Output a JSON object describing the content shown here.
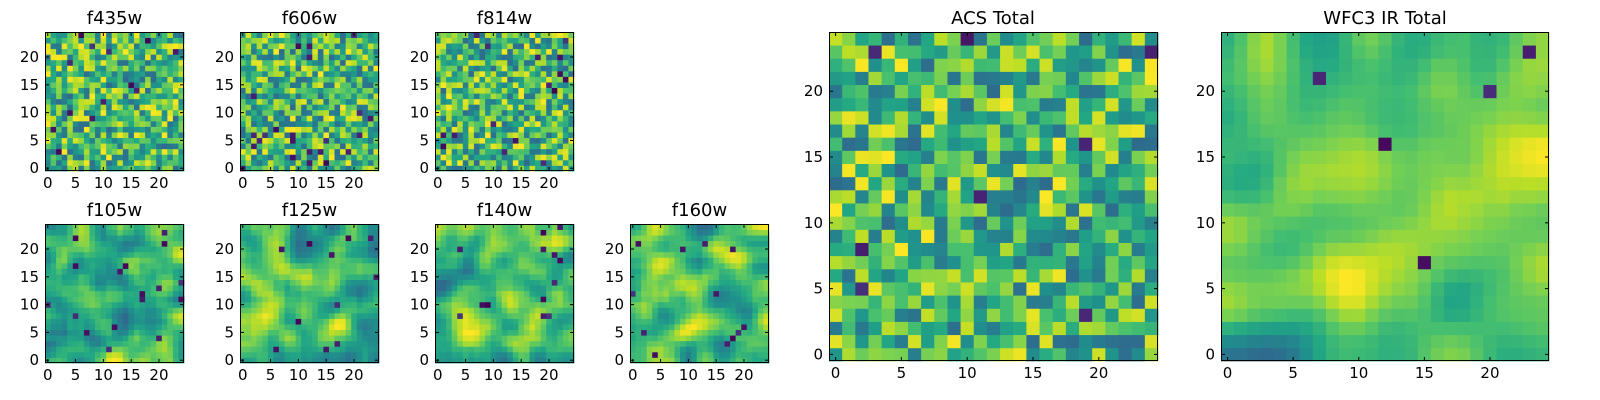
{
  "chart_data": [
    {
      "type": "heatmap",
      "title": "f435w",
      "grid_size": 25,
      "x_ticks": [
        "0",
        "5",
        "10",
        "15",
        "20"
      ],
      "y_ticks": [
        "0",
        "5",
        "10",
        "15",
        "20"
      ],
      "xlim": [
        -0.5,
        24.5
      ],
      "ylim": [
        -0.5,
        24.5
      ],
      "colormap": "viridis",
      "seed": 11,
      "smoothness": 0,
      "dark_fraction": 0.03
    },
    {
      "type": "heatmap",
      "title": "f606w",
      "grid_size": 25,
      "x_ticks": [
        "0",
        "5",
        "10",
        "15",
        "20"
      ],
      "y_ticks": [
        "0",
        "5",
        "10",
        "15",
        "20"
      ],
      "xlim": [
        -0.5,
        24.5
      ],
      "ylim": [
        -0.5,
        24.5
      ],
      "colormap": "viridis",
      "seed": 23,
      "smoothness": 0,
      "dark_fraction": 0.03
    },
    {
      "type": "heatmap",
      "title": "f814w",
      "grid_size": 25,
      "x_ticks": [
        "0",
        "5",
        "10",
        "15",
        "20"
      ],
      "y_ticks": [
        "0",
        "5",
        "10",
        "15",
        "20"
      ],
      "xlim": [
        -0.5,
        24.5
      ],
      "ylim": [
        -0.5,
        24.5
      ],
      "colormap": "viridis",
      "seed": 37,
      "smoothness": 0,
      "dark_fraction": 0.03
    },
    {
      "type": "heatmap",
      "title": "f105w",
      "grid_size": 25,
      "x_ticks": [
        "0",
        "5",
        "10",
        "15",
        "20"
      ],
      "y_ticks": [
        "0",
        "5",
        "10",
        "15",
        "20"
      ],
      "xlim": [
        -0.5,
        24.5
      ],
      "ylim": [
        -0.5,
        24.5
      ],
      "colormap": "viridis",
      "seed": 41,
      "smoothness": 2,
      "dark_fraction": 0.02
    },
    {
      "type": "heatmap",
      "title": "f125w",
      "grid_size": 25,
      "x_ticks": [
        "0",
        "5",
        "10",
        "15",
        "20"
      ],
      "y_ticks": [
        "0",
        "5",
        "10",
        "15",
        "20"
      ],
      "xlim": [
        -0.5,
        24.5
      ],
      "ylim": [
        -0.5,
        24.5
      ],
      "colormap": "viridis",
      "seed": 53,
      "smoothness": 2,
      "dark_fraction": 0.02
    },
    {
      "type": "heatmap",
      "title": "f140w",
      "grid_size": 25,
      "x_ticks": [
        "0",
        "5",
        "10",
        "15",
        "20"
      ],
      "y_ticks": [
        "0",
        "5",
        "10",
        "15",
        "20"
      ],
      "xlim": [
        -0.5,
        24.5
      ],
      "ylim": [
        -0.5,
        24.5
      ],
      "colormap": "viridis",
      "seed": 67,
      "smoothness": 2,
      "dark_fraction": 0.02
    },
    {
      "type": "heatmap",
      "title": "f160w",
      "grid_size": 25,
      "x_ticks": [
        "0",
        "5",
        "10",
        "15",
        "20"
      ],
      "y_ticks": [
        "0",
        "5",
        "10",
        "15",
        "20"
      ],
      "xlim": [
        -0.5,
        24.5
      ],
      "ylim": [
        -0.5,
        24.5
      ],
      "colormap": "viridis",
      "seed": 71,
      "smoothness": 2,
      "dark_fraction": 0.02
    },
    {
      "type": "heatmap",
      "title": "ACS Total",
      "grid_size": 25,
      "x_ticks": [
        "0",
        "5",
        "10",
        "15",
        "20"
      ],
      "y_ticks": [
        "0",
        "5",
        "10",
        "15",
        "20"
      ],
      "xlim": [
        -0.5,
        24.5
      ],
      "ylim": [
        -0.5,
        24.5
      ],
      "colormap": "viridis",
      "seed": 83,
      "smoothness": 0,
      "dark_fraction": 0.02
    },
    {
      "type": "heatmap",
      "title": "WFC3 IR Total",
      "grid_size": 25,
      "x_ticks": [
        "0",
        "5",
        "10",
        "15",
        "20"
      ],
      "y_ticks": [
        "0",
        "5",
        "10",
        "15",
        "20"
      ],
      "xlim": [
        -0.5,
        24.5
      ],
      "ylim": [
        -0.5,
        24.5
      ],
      "colormap": "viridis",
      "seed": 97,
      "smoothness": 3,
      "dark_fraction": 0.01
    }
  ]
}
